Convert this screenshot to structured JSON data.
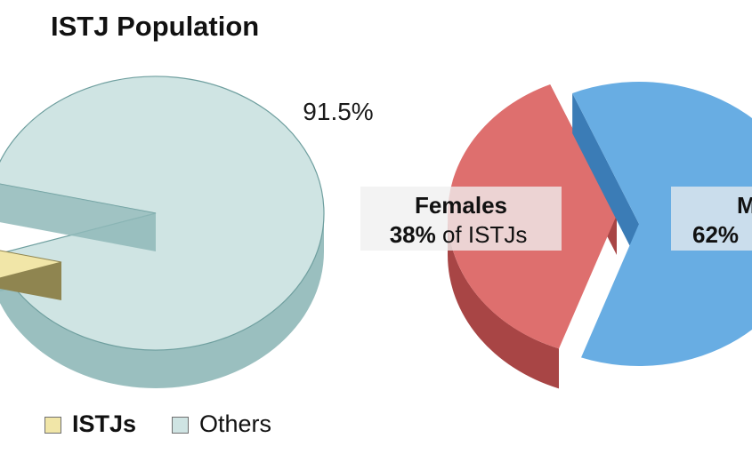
{
  "title": "ISTJ Population",
  "colors": {
    "istj_top": "#f1e6a8",
    "istj_side": "#8f8550",
    "others_top": "#cfe4e3",
    "others_side": "#8fb8b8",
    "females_top": "#de6f6e",
    "females_side": "#a84545",
    "males_top": "#68ade3",
    "males_side": "#3b7cb6",
    "label_box": "#f0f0f0"
  },
  "chart_data": [
    {
      "type": "pie",
      "title": "ISTJ Population",
      "three_d": true,
      "legend_position": "bottom-left",
      "slices": [
        {
          "name": "ISTJs",
          "value": 8.5,
          "exploded": true,
          "label": ""
        },
        {
          "name": "Others",
          "value": 91.5,
          "exploded": false,
          "label": "91.5%"
        }
      ]
    },
    {
      "type": "pie",
      "title": "",
      "three_d": true,
      "slices": [
        {
          "name": "Females",
          "value": 38,
          "label_bold": "38%",
          "label_rest": " of ISTJs",
          "exploded": false
        },
        {
          "name": "Males",
          "value": 62,
          "label_bold": "62%",
          "label_rest": "",
          "label_truncated": "M",
          "exploded": true
        }
      ]
    }
  ]
}
